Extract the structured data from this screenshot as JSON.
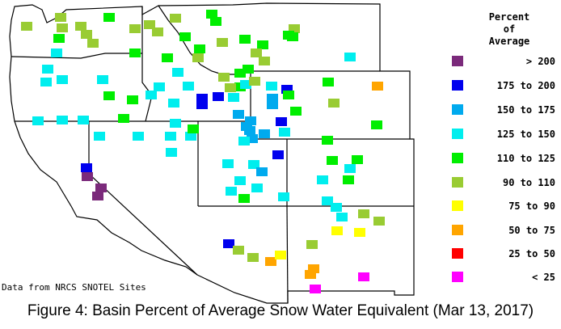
{
  "legend": {
    "title_lines": [
      "Percent",
      "of",
      "Average"
    ],
    "entries": [
      {
        "label": "> 200",
        "color": "#7b2a7b"
      },
      {
        "label": "175 to 200",
        "color": "#0000ee"
      },
      {
        "label": "150 to 175",
        "color": "#00aaee"
      },
      {
        "label": "125 to 150",
        "color": "#00eeee"
      },
      {
        "label": "110 to 125",
        "color": "#00ee00"
      },
      {
        "label": "90 to 110",
        "color": "#99cc33"
      },
      {
        "label": "75 to 90",
        "color": "#ffff00"
      },
      {
        "label": "50 to 75",
        "color": "#ffa500"
      },
      {
        "label": "25 to 50",
        "color": "#ff0000"
      },
      {
        "label": "< 25",
        "color": "#ff00ff"
      }
    ]
  },
  "source_note": "Data from NRCS SNOTEL Sites",
  "caption": "Figure 4: Basin Percent of Average Snow Water Equivalent (Mar 13, 2017)"
}
